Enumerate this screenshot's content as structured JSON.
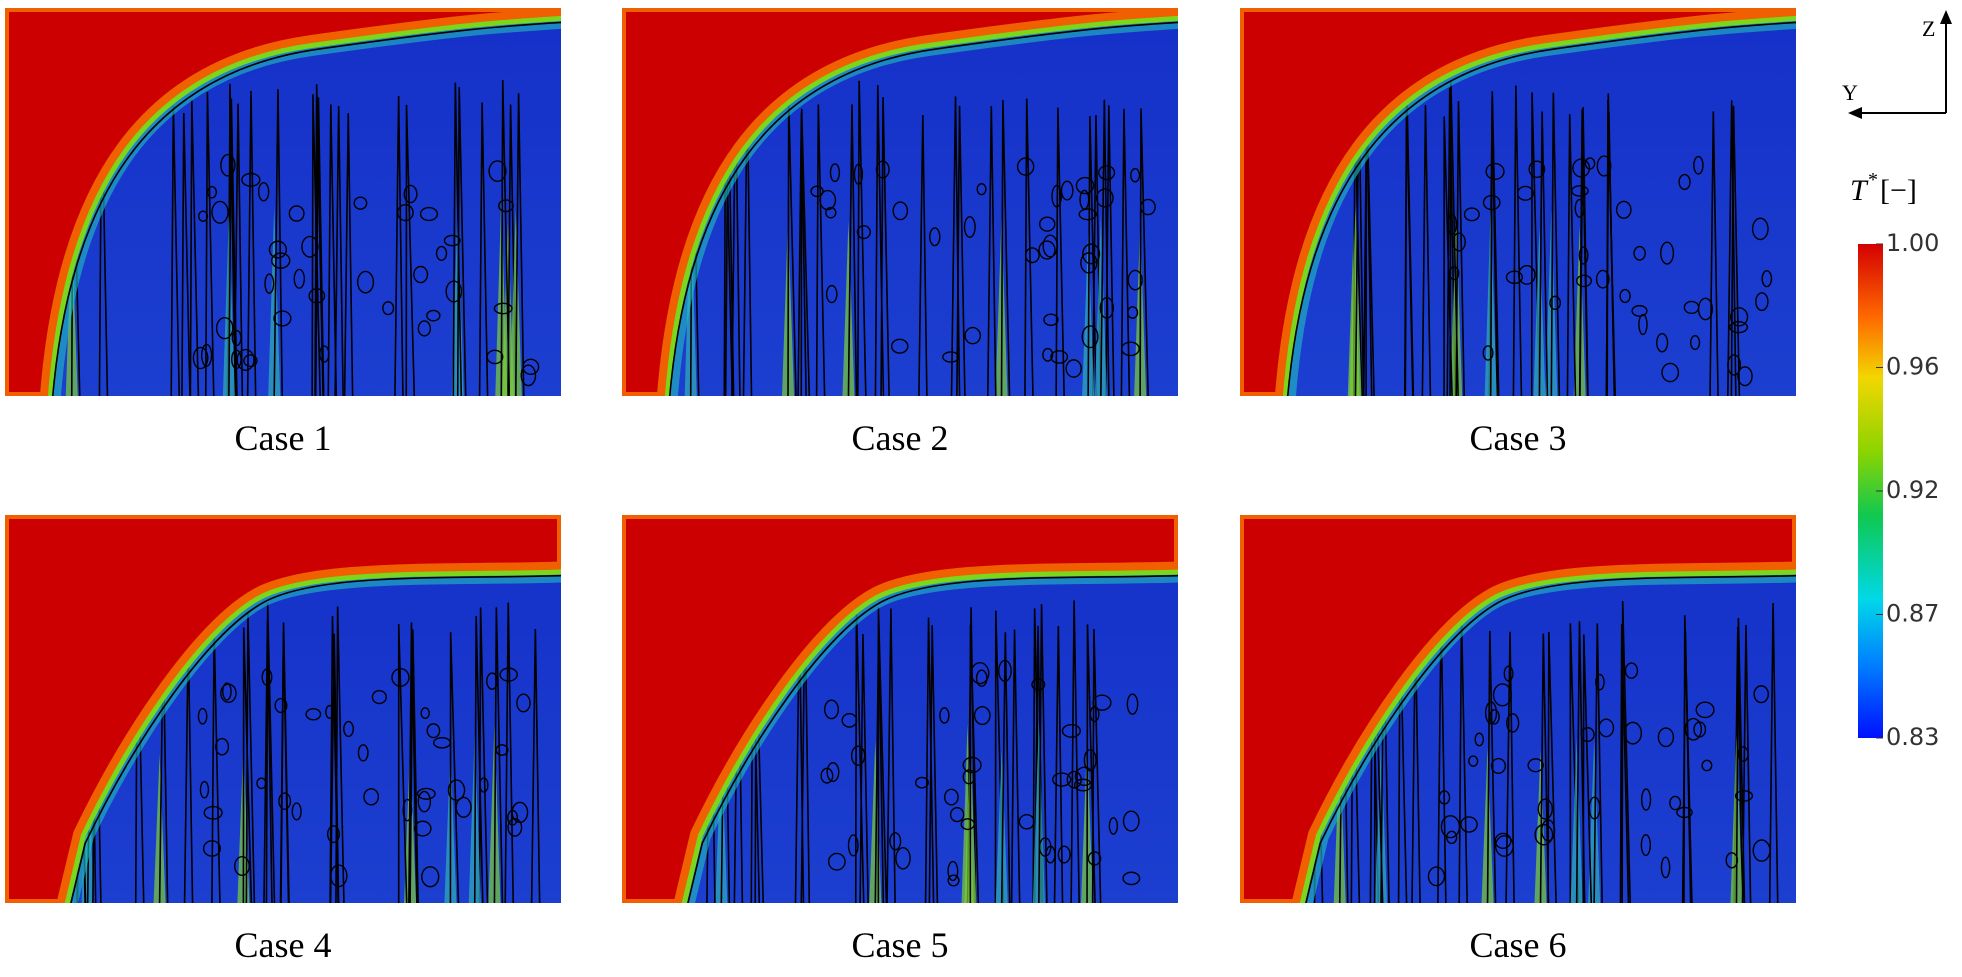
{
  "panels": [
    {
      "caption": "Case 1"
    },
    {
      "caption": "Case 2"
    },
    {
      "caption": "Case 3"
    },
    {
      "caption": "Case 4"
    },
    {
      "caption": "Case 5"
    },
    {
      "caption": "Case 6"
    }
  ],
  "axes": {
    "vertical": "Z",
    "horizontal": "Y"
  },
  "colorbar": {
    "symbol": "T",
    "superscript": "*",
    "unit": "[−]",
    "ticks": [
      "1.00",
      "0.96",
      "0.92",
      "0.87",
      "0.83"
    ]
  }
}
